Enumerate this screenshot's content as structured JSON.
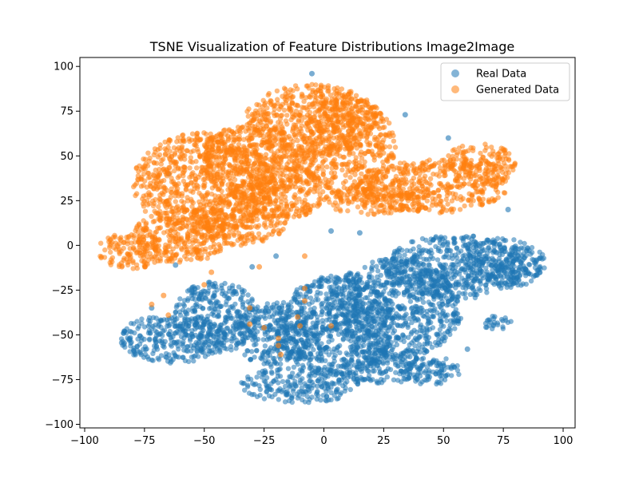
{
  "chart_data": {
    "type": "scatter",
    "title": "TSNE Visualization of Feature Distributions Image2Image",
    "xlabel": "",
    "ylabel": "",
    "xlim": [
      -102,
      105
    ],
    "ylim": [
      -102,
      105
    ],
    "xticks": [
      -100,
      -75,
      -50,
      -25,
      0,
      25,
      50,
      75,
      100
    ],
    "yticks": [
      -100,
      -75,
      -50,
      -25,
      0,
      25,
      50,
      75,
      100
    ],
    "grid": false,
    "legend_position": "top-right",
    "series": [
      {
        "name": "Real Data",
        "color": "#1f77b4",
        "regions": [
          {
            "cx": 55,
            "cy": -12,
            "rx": 30,
            "ry": 18
          },
          {
            "cx": 75,
            "cy": -10,
            "rx": 18,
            "ry": 14
          },
          {
            "cx": 30,
            "cy": -35,
            "rx": 28,
            "ry": 28
          },
          {
            "cx": 5,
            "cy": -45,
            "rx": 25,
            "ry": 28
          },
          {
            "cx": -20,
            "cy": -50,
            "rx": 18,
            "ry": 18
          },
          {
            "cx": -63,
            "cy": -52,
            "rx": 22,
            "ry": 14
          },
          {
            "cx": -45,
            "cy": -40,
            "rx": 18,
            "ry": 20
          },
          {
            "cx": -10,
            "cy": -78,
            "rx": 25,
            "ry": 10
          },
          {
            "cx": 25,
            "cy": -68,
            "rx": 18,
            "ry": 10
          },
          {
            "cx": 45,
            "cy": -70,
            "rx": 12,
            "ry": 8
          },
          {
            "cx": 72,
            "cy": -43,
            "rx": 7,
            "ry": 4
          }
        ],
        "outliers": [
          [
            34,
            73
          ],
          [
            -5,
            96
          ],
          [
            3,
            8
          ],
          [
            15,
            7
          ],
          [
            -65,
            40
          ],
          [
            77,
            20
          ],
          [
            -62,
            -11
          ],
          [
            -30,
            -12
          ],
          [
            -20,
            -6
          ],
          [
            52,
            60
          ],
          [
            60,
            -58
          ],
          [
            -72,
            -35
          ]
        ]
      },
      {
        "name": "Generated Data",
        "color": "#ff7f0e",
        "regions": [
          {
            "cx": -50,
            "cy": 35,
            "rx": 30,
            "ry": 28
          },
          {
            "cx": -30,
            "cy": 48,
            "rx": 22,
            "ry": 20
          },
          {
            "cx": -5,
            "cy": 70,
            "rx": 28,
            "ry": 20
          },
          {
            "cx": 10,
            "cy": 55,
            "rx": 20,
            "ry": 28
          },
          {
            "cx": 45,
            "cy": 33,
            "rx": 32,
            "ry": 15
          },
          {
            "cx": 65,
            "cy": 45,
            "rx": 15,
            "ry": 12
          },
          {
            "cx": -80,
            "cy": -3,
            "rx": 15,
            "ry": 10
          },
          {
            "cx": -60,
            "cy": 5,
            "rx": 20,
            "ry": 15
          },
          {
            "cx": -35,
            "cy": 15,
            "rx": 20,
            "ry": 15
          },
          {
            "cx": -15,
            "cy": 30,
            "rx": 15,
            "ry": 15
          },
          {
            "cx": 20,
            "cy": 25,
            "rx": 20,
            "ry": 8
          }
        ],
        "outliers": [
          [
            -27,
            -12
          ],
          [
            -31,
            -35
          ],
          [
            -25,
            -46
          ],
          [
            -19,
            -52
          ],
          [
            -19,
            -56
          ],
          [
            -18,
            -61
          ],
          [
            -10,
            -45
          ],
          [
            -11,
            -40
          ],
          [
            -8,
            -31
          ],
          [
            -8,
            -24
          ],
          [
            3,
            -45
          ],
          [
            -47,
            -15
          ],
          [
            -50,
            -22
          ],
          [
            -67,
            -28
          ],
          [
            -72,
            -33
          ],
          [
            -65,
            -39
          ],
          [
            -8,
            -6
          ],
          [
            -31,
            -44
          ]
        ]
      }
    ]
  }
}
